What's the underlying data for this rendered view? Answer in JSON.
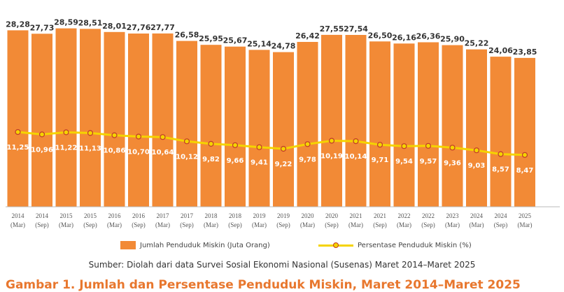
{
  "chart_data": {
    "type": "bar",
    "categories": [
      [
        "2014",
        "(Mar)"
      ],
      [
        "2014",
        "(Sep)"
      ],
      [
        "2015",
        "(Mar)"
      ],
      [
        "2015",
        "(Sep)"
      ],
      [
        "2016",
        "(Mar)"
      ],
      [
        "2016",
        "(Sep)"
      ],
      [
        "2017",
        "(Mar)"
      ],
      [
        "2017",
        "(Sep)"
      ],
      [
        "2018",
        "(Mar)"
      ],
      [
        "2018",
        "(Sep)"
      ],
      [
        "2019",
        "(Mar)"
      ],
      [
        "2019",
        "(Sep)"
      ],
      [
        "2020",
        "(Mar)"
      ],
      [
        "2020",
        "(Sep)"
      ],
      [
        "2021",
        "(Mar)"
      ],
      [
        "2021",
        "(Sep)"
      ],
      [
        "2022",
        "(Mar)"
      ],
      [
        "2022",
        "(Sep)"
      ],
      [
        "2023",
        "(Mar)"
      ],
      [
        "2024",
        "(Mar)"
      ],
      [
        "2024",
        "(Sep)"
      ],
      [
        "2025",
        "(Mar)"
      ]
    ],
    "series": [
      {
        "name": "Jumlah Penduduk Miskin (Juta Orang)",
        "type": "bar",
        "color": "#F28A36",
        "values": [
          28.28,
          27.73,
          28.59,
          28.51,
          28.01,
          27.76,
          27.77,
          26.58,
          25.95,
          25.67,
          25.14,
          24.78,
          26.42,
          27.55,
          27.54,
          26.5,
          26.16,
          26.36,
          25.9,
          25.22,
          24.06,
          23.85
        ],
        "labels": [
          "28,28",
          "27,73",
          "28,59",
          "28,51",
          "28,01",
          "27,76",
          "27,77",
          "26,58",
          "25,95",
          "25,67",
          "25,14",
          "24,78",
          "26,42",
          "27,55",
          "27,54",
          "26,50",
          "26,16",
          "26,36",
          "25,90",
          "25,22",
          "24,06",
          "23,85"
        ]
      },
      {
        "name": "Persentase Penduduk Miskin (%)",
        "type": "line",
        "color": "#F5D300",
        "marker_color": "#C0392B",
        "values": [
          11.25,
          10.96,
          11.22,
          11.13,
          10.86,
          10.7,
          10.64,
          10.12,
          9.82,
          9.66,
          9.41,
          9.22,
          9.78,
          10.19,
          10.14,
          9.71,
          9.54,
          9.57,
          9.36,
          9.03,
          8.57,
          8.47
        ],
        "labels": [
          "11,25",
          "10,96",
          "11,22",
          "11,13",
          "10,86",
          "10,70",
          "10,64",
          "10,12",
          "9,82",
          "9,66",
          "9,41",
          "9,22",
          "9,78",
          "10,19",
          "10,14",
          "9,71",
          "9,54",
          "9,57",
          "9,36",
          "9,03",
          "8,57",
          "8,47"
        ]
      }
    ],
    "bar_ylim": [
      0,
      30
    ],
    "line_ylim": [
      0,
      25
    ],
    "grid": false
  },
  "legend": {
    "bar_label": "Jumlah Penduduk Miskin (Juta Orang)",
    "line_label": "Persentase Penduduk Miskin (%)"
  },
  "source": "Sumber: Diolah dari data Survei Sosial Ekonomi Nasional (Susenas) Maret 2014–Maret 2025",
  "caption": "Gambar 1. Jumlah dan Persentase Penduduk Miskin, Maret 2014–Maret 2025"
}
